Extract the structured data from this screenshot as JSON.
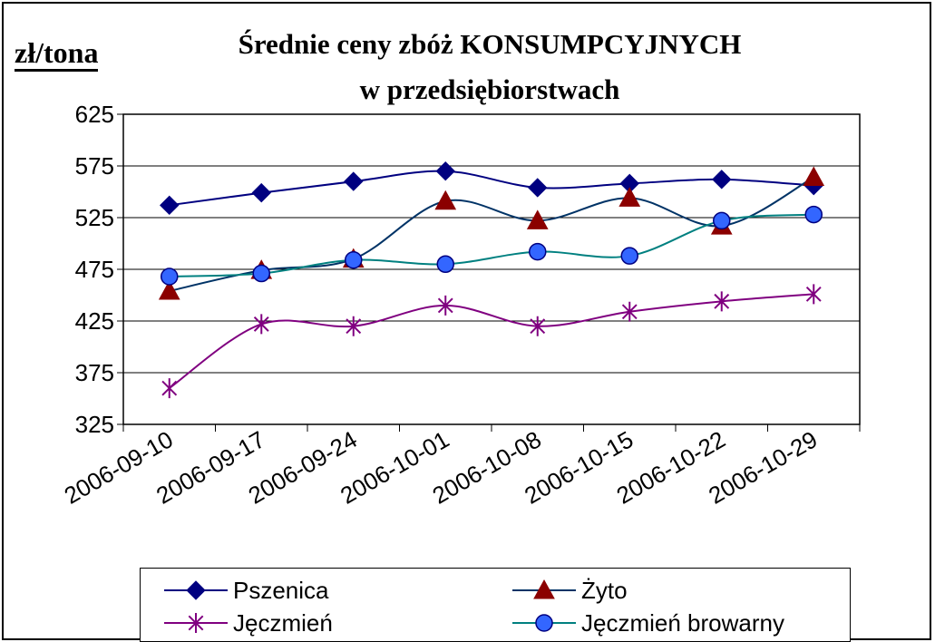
{
  "chart_data": {
    "type": "line",
    "title_line1": "Średnie ceny zbóż KONSUMPCYJNYCH",
    "title_line2": "w przedsiębiorstwach",
    "ylabel": "zł/tona",
    "xlabel": "",
    "ylim": [
      325,
      625
    ],
    "yticks": [
      625,
      575,
      525,
      475,
      425,
      375,
      325
    ],
    "categories": [
      "2006-09-10",
      "2006-09-17",
      "2006-09-24",
      "2006-10-01",
      "2006-10-08",
      "2006-10-15",
      "2006-10-22",
      "2006-10-29"
    ],
    "grid": true,
    "legend_position": "bottom",
    "series": [
      {
        "name": "Pszenica",
        "color": "#000080",
        "marker": "diamond",
        "values": [
          537,
          549,
          560,
          570,
          554,
          558,
          562,
          556
        ]
      },
      {
        "name": "Żyto",
        "color": "#003366",
        "marker": "triangle",
        "marker_color": "#8B0000",
        "values": [
          454,
          474,
          485,
          541,
          522,
          544,
          517,
          564
        ]
      },
      {
        "name": "Jęczmień",
        "color": "#800080",
        "marker": "star",
        "values": [
          360,
          422,
          420,
          440,
          420,
          434,
          444,
          451
        ]
      },
      {
        "name": "Jęczmień browarny",
        "color": "#008080",
        "marker": "circle",
        "marker_color": "#3366FF",
        "values": [
          468,
          471,
          484,
          480,
          492,
          488,
          522,
          528
        ]
      }
    ]
  }
}
